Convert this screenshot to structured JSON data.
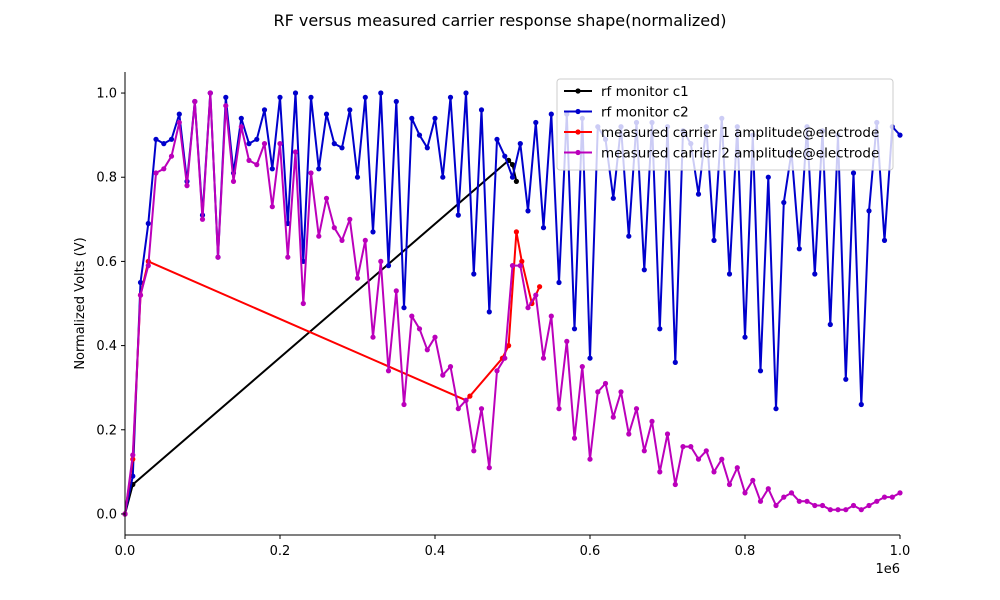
{
  "chart_data": {
    "type": "line",
    "title": "RF versus measured carrier response shape(normalized)",
    "xlabel": "",
    "ylabel": "Normalized Volts (V)",
    "x_offset_text": "1e6",
    "xlim": [
      0,
      1000000
    ],
    "ylim": [
      -0.05,
      1.05
    ],
    "x_ticks": [
      0,
      200000,
      400000,
      600000,
      800000,
      1000000
    ],
    "x_tick_labels": [
      "0.0",
      "0.2",
      "0.4",
      "0.6",
      "0.8",
      "1.0"
    ],
    "y_ticks": [
      0.0,
      0.2,
      0.4,
      0.6,
      0.8,
      1.0
    ],
    "y_tick_labels": [
      "0.0",
      "0.2",
      "0.4",
      "0.6",
      "0.8",
      "1.0"
    ],
    "grid": false,
    "legend_position": "top-right",
    "series": [
      {
        "name": "rf monitor c1",
        "color": "#000000",
        "x": [
          0,
          10000,
          495000,
          500000,
          505000
        ],
        "y": [
          0.0,
          0.07,
          0.84,
          0.83,
          0.79
        ]
      },
      {
        "name": "rf monitor c2",
        "color": "#0000cc",
        "x": [
          0,
          10000,
          20000,
          30000,
          40000,
          50000,
          60000,
          70000,
          80000,
          90000,
          100000,
          110000,
          120000,
          130000,
          140000,
          150000,
          160000,
          170000,
          180000,
          190000,
          200000,
          210000,
          220000,
          230000,
          240000,
          250000,
          260000,
          270000,
          280000,
          290000,
          300000,
          310000,
          320000,
          330000,
          340000,
          350000,
          360000,
          370000,
          380000,
          390000,
          400000,
          410000,
          420000,
          430000,
          440000,
          450000,
          460000,
          470000,
          480000,
          490000,
          500000,
          510000,
          520000,
          530000,
          540000,
          550000,
          560000,
          570000,
          580000,
          590000,
          600000,
          610000,
          620000,
          630000,
          640000,
          650000,
          660000,
          670000,
          680000,
          690000,
          700000,
          710000,
          720000,
          730000,
          740000,
          750000,
          760000,
          770000,
          780000,
          790000,
          800000,
          810000,
          820000,
          830000,
          840000,
          850000,
          860000,
          870000,
          880000,
          890000,
          900000,
          910000,
          920000,
          930000,
          940000,
          950000,
          960000,
          970000,
          980000,
          990000,
          1000000
        ],
        "y": [
          0.0,
          0.09,
          0.55,
          0.69,
          0.89,
          0.88,
          0.89,
          0.95,
          0.79,
          0.98,
          0.71,
          1.0,
          0.61,
          0.99,
          0.81,
          0.94,
          0.88,
          0.89,
          0.96,
          0.82,
          0.99,
          0.69,
          1.0,
          0.6,
          0.99,
          0.82,
          0.95,
          0.88,
          0.87,
          0.96,
          0.8,
          0.99,
          0.67,
          1.0,
          0.59,
          0.98,
          0.49,
          0.94,
          0.9,
          0.87,
          0.94,
          0.8,
          0.99,
          0.71,
          1.0,
          0.57,
          0.96,
          0.48,
          0.89,
          0.85,
          0.8,
          0.88,
          0.72,
          0.93,
          0.68,
          0.95,
          0.55,
          0.95,
          0.44,
          0.94,
          0.37,
          0.92,
          0.89,
          0.75,
          0.92,
          0.66,
          0.93,
          0.58,
          0.93,
          0.44,
          0.92,
          0.36,
          0.91,
          0.88,
          0.76,
          0.92,
          0.65,
          0.94,
          0.57,
          0.92,
          0.42,
          0.9,
          0.34,
          0.8,
          0.25,
          0.74,
          0.86,
          0.63,
          0.92,
          0.57,
          0.91,
          0.45,
          0.9,
          0.32,
          0.81,
          0.26,
          0.72,
          0.93,
          0.65,
          0.92,
          0.9
        ]
      },
      {
        "name": "measured carrier 1 amplitude@electrode",
        "color": "#ff0000",
        "x": [
          0,
          10000,
          20000,
          30000,
          440000,
          445000,
          487000,
          495000,
          505000,
          512000,
          525000,
          535000
        ],
        "y": [
          0.0,
          0.13,
          0.52,
          0.6,
          0.27,
          0.28,
          0.37,
          0.4,
          0.67,
          0.6,
          0.5,
          0.54
        ]
      },
      {
        "name": "measured carrier 2 amplitude@electrode",
        "color": "#bb00bb",
        "x": [
          0,
          10000,
          20000,
          30000,
          40000,
          50000,
          60000,
          70000,
          80000,
          90000,
          100000,
          110000,
          120000,
          130000,
          140000,
          150000,
          160000,
          170000,
          180000,
          190000,
          200000,
          210000,
          220000,
          230000,
          240000,
          250000,
          260000,
          270000,
          280000,
          290000,
          300000,
          310000,
          320000,
          330000,
          340000,
          350000,
          360000,
          370000,
          380000,
          390000,
          400000,
          410000,
          420000,
          430000,
          440000,
          450000,
          460000,
          470000,
          480000,
          490000,
          500000,
          510000,
          520000,
          530000,
          540000,
          550000,
          560000,
          570000,
          580000,
          590000,
          600000,
          610000,
          620000,
          630000,
          640000,
          650000,
          660000,
          670000,
          680000,
          690000,
          700000,
          710000,
          720000,
          730000,
          740000,
          750000,
          760000,
          770000,
          780000,
          790000,
          800000,
          810000,
          820000,
          830000,
          840000,
          850000,
          860000,
          870000,
          880000,
          890000,
          900000,
          910000,
          920000,
          930000,
          940000,
          950000,
          960000,
          970000,
          980000,
          990000,
          1000000
        ],
        "y": [
          0.0,
          0.14,
          0.52,
          0.59,
          0.81,
          0.82,
          0.85,
          0.93,
          0.78,
          0.98,
          0.7,
          1.0,
          0.61,
          0.97,
          0.79,
          0.92,
          0.84,
          0.83,
          0.88,
          0.73,
          0.88,
          0.61,
          0.86,
          0.5,
          0.81,
          0.66,
          0.75,
          0.68,
          0.65,
          0.7,
          0.56,
          0.65,
          0.42,
          0.6,
          0.34,
          0.53,
          0.26,
          0.47,
          0.44,
          0.39,
          0.42,
          0.33,
          0.35,
          0.25,
          0.27,
          0.15,
          0.25,
          0.11,
          0.34,
          0.37,
          0.59,
          0.59,
          0.49,
          0.52,
          0.37,
          0.47,
          0.25,
          0.41,
          0.18,
          0.35,
          0.13,
          0.29,
          0.31,
          0.23,
          0.29,
          0.19,
          0.25,
          0.15,
          0.22,
          0.1,
          0.19,
          0.07,
          0.16,
          0.16,
          0.13,
          0.15,
          0.1,
          0.13,
          0.07,
          0.11,
          0.05,
          0.08,
          0.03,
          0.06,
          0.02,
          0.04,
          0.05,
          0.03,
          0.03,
          0.02,
          0.02,
          0.01,
          0.01,
          0.01,
          0.02,
          0.01,
          0.02,
          0.03,
          0.04,
          0.04,
          0.05
        ]
      }
    ]
  }
}
